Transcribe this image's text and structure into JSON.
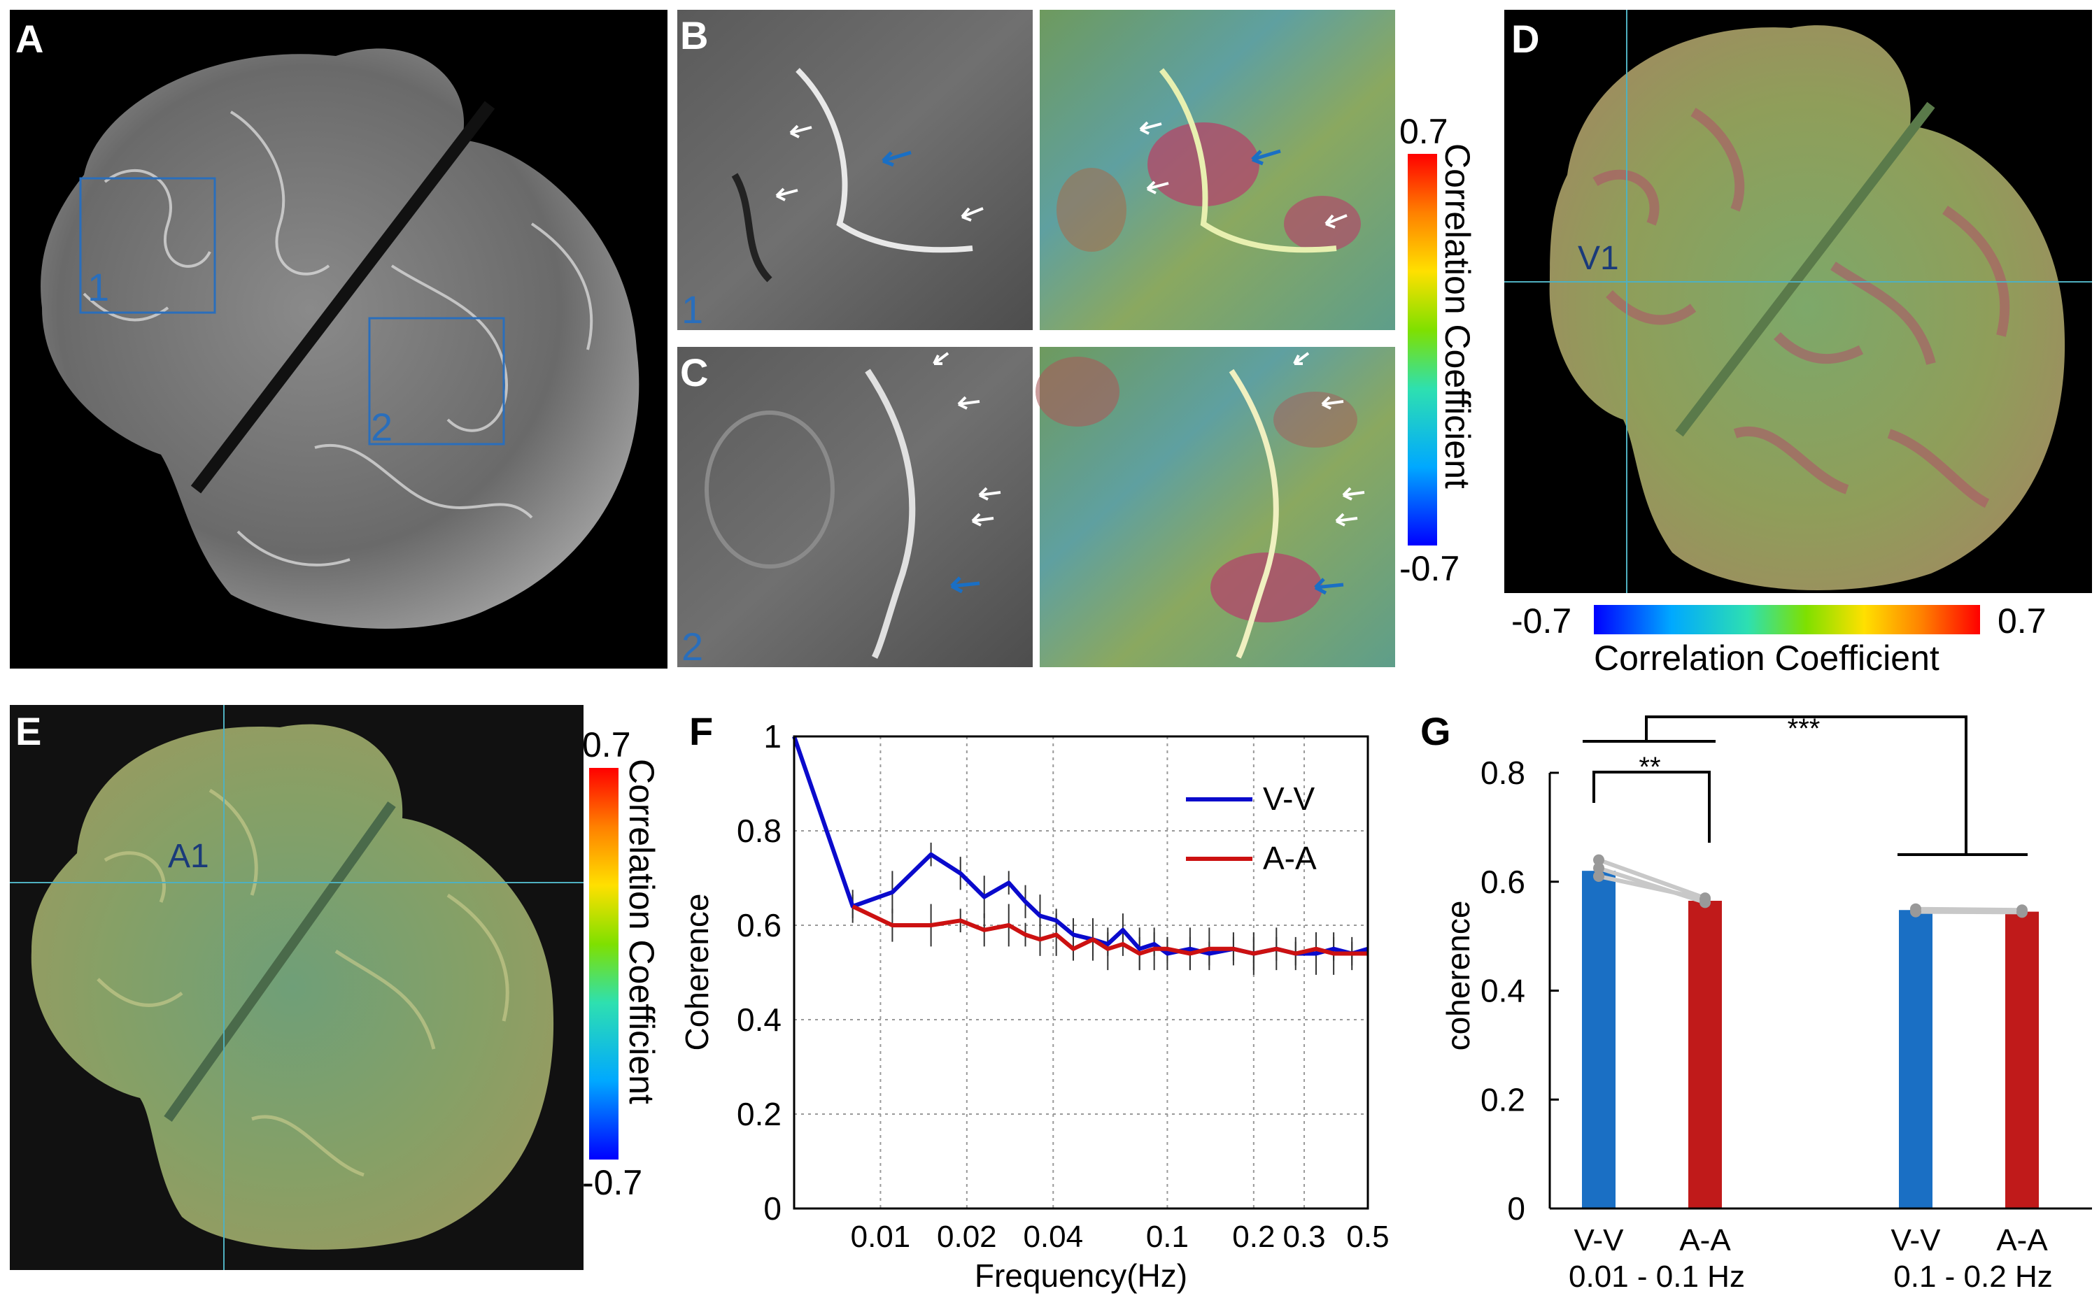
{
  "panels": {
    "A": {
      "label": "A",
      "roi1": "1",
      "roi2": "2"
    },
    "B": {
      "label": "B",
      "roi": "1"
    },
    "C": {
      "label": "C",
      "roi": "2"
    },
    "D": {
      "label": "D",
      "region": "V1"
    },
    "E": {
      "label": "E",
      "region": "A1"
    },
    "F": {
      "label": "F"
    },
    "G": {
      "label": "G"
    }
  },
  "colorbars": {
    "bc": {
      "max": "0.7",
      "min": "-0.7",
      "title": "Correlation Coefficient"
    },
    "d": {
      "max": "0.7",
      "min": "-0.7",
      "title": "Correlation Coefficient"
    },
    "e": {
      "max": "0.7",
      "min": "-0.7",
      "title": "Correlation Coefficient"
    }
  },
  "colors": {
    "blue_line": "#0a0acc",
    "red_line": "#cc1111",
    "bar_blue": "#1a6fc4",
    "bar_red": "#c01a1a",
    "roi_box": "#2a6ebb",
    "crosshair": "#4fb0c0"
  },
  "chart_data": [
    {
      "type": "line",
      "panel": "F",
      "xlabel": "Frequency(Hz)",
      "ylabel": "Coherence",
      "x_scale": "log",
      "xlim": [
        0.005,
        0.5
      ],
      "ylim": [
        0,
        1
      ],
      "xticks": [
        "0.01",
        "0.02",
        "0.04",
        "0.1",
        "0.2",
        "0.3",
        "0.5"
      ],
      "xtick_values": [
        0.01,
        0.02,
        0.04,
        0.1,
        0.2,
        0.3,
        0.5
      ],
      "yticks": [
        "0",
        "0.2",
        "0.4",
        "0.6",
        "0.8",
        "1"
      ],
      "ytick_values": [
        0,
        0.2,
        0.4,
        0.6,
        0.8,
        1
      ],
      "legend_position": "top-right",
      "series": [
        {
          "name": "V-V",
          "color": "#0a0acc",
          "x": [
            0.005,
            0.008,
            0.011,
            0.015,
            0.019,
            0.023,
            0.028,
            0.032,
            0.036,
            0.041,
            0.047,
            0.055,
            0.062,
            0.07,
            0.08,
            0.09,
            0.1,
            0.12,
            0.14,
            0.17,
            0.2,
            0.24,
            0.28,
            0.33,
            0.38,
            0.44,
            0.5
          ],
          "y": [
            1.0,
            0.64,
            0.67,
            0.75,
            0.71,
            0.66,
            0.69,
            0.65,
            0.62,
            0.61,
            0.58,
            0.57,
            0.56,
            0.59,
            0.55,
            0.56,
            0.54,
            0.55,
            0.54,
            0.55,
            0.54,
            0.55,
            0.54,
            0.54,
            0.55,
            0.54,
            0.55
          ]
        },
        {
          "name": "A-A",
          "color": "#cc1111",
          "x": [
            0.008,
            0.011,
            0.015,
            0.019,
            0.023,
            0.028,
            0.032,
            0.036,
            0.041,
            0.047,
            0.055,
            0.062,
            0.07,
            0.08,
            0.09,
            0.1,
            0.12,
            0.14,
            0.17,
            0.2,
            0.24,
            0.28,
            0.33,
            0.38,
            0.44,
            0.5
          ],
          "y": [
            0.64,
            0.6,
            0.6,
            0.61,
            0.59,
            0.6,
            0.58,
            0.57,
            0.58,
            0.55,
            0.57,
            0.55,
            0.56,
            0.54,
            0.55,
            0.55,
            0.54,
            0.55,
            0.55,
            0.54,
            0.55,
            0.54,
            0.55,
            0.54,
            0.54,
            0.54
          ]
        }
      ]
    },
    {
      "type": "bar",
      "panel": "G",
      "ylabel": "coherence",
      "ylim": [
        0,
        0.8
      ],
      "yticks": [
        "0",
        "0.2",
        "0.4",
        "0.6",
        "0.8"
      ],
      "ytick_values": [
        0,
        0.2,
        0.4,
        0.6,
        0.8
      ],
      "groups": [
        "0.01 - 0.1 Hz",
        "0.1 - 0.2 Hz"
      ],
      "categories": [
        "V-V",
        "A-A",
        "V-V",
        "A-A"
      ],
      "values": [
        0.62,
        0.565,
        0.548,
        0.545
      ],
      "bar_colors": [
        "#1a6fc4",
        "#c01a1a",
        "#1a6fc4",
        "#c01a1a"
      ],
      "subjects": [
        {
          "group": 0,
          "v": [
            0.64,
            0.57
          ]
        },
        {
          "group": 0,
          "v": [
            0.625,
            0.562
          ]
        },
        {
          "group": 0,
          "v": [
            0.61,
            0.568
          ]
        },
        {
          "group": 1,
          "v": [
            0.55,
            0.548
          ]
        },
        {
          "group": 1,
          "v": [
            0.545,
            0.544
          ]
        }
      ],
      "significance": {
        "within_low": "**",
        "between_bands": "***"
      }
    }
  ]
}
